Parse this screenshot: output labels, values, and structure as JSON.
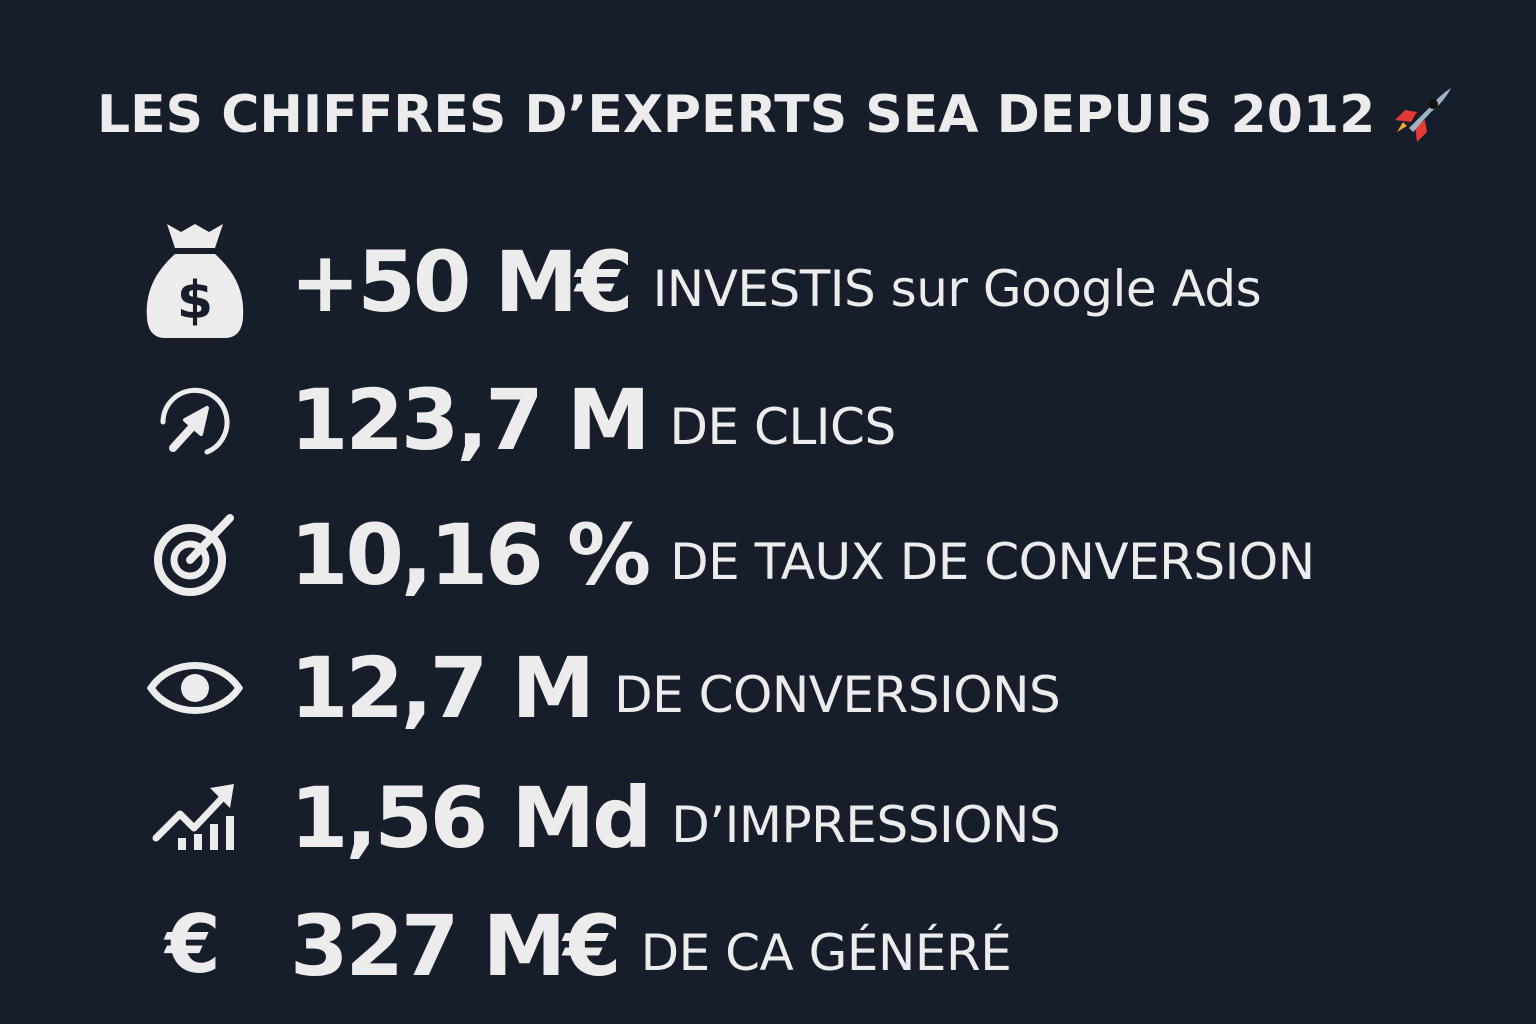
{
  "title": "LES CHIFFRES D’EXPERTS SEA DEPUIS 2012",
  "title_icon": "rocket-icon",
  "colors": {
    "background": "#161d2b",
    "text": "#ececec"
  },
  "stats": [
    {
      "icon": "money-bag-icon",
      "value": "+50 M€",
      "label": "INVESTIS sur Google Ads"
    },
    {
      "icon": "click-arrow-icon",
      "value": "123,7 M",
      "label": "DE CLICS"
    },
    {
      "icon": "target-icon",
      "value": "10,16 %",
      "label": "DE TAUX DE CONVERSION"
    },
    {
      "icon": "eye-icon",
      "value": "12,7 M",
      "label": "DE CONVERSIONS"
    },
    {
      "icon": "trending-up-chart-icon",
      "value": "1,56 Md",
      "label": "D’IMPRESSIONS"
    },
    {
      "icon": "euro-icon",
      "value": "327 M€",
      "label": "DE CA GÉNÉRÉ"
    }
  ]
}
